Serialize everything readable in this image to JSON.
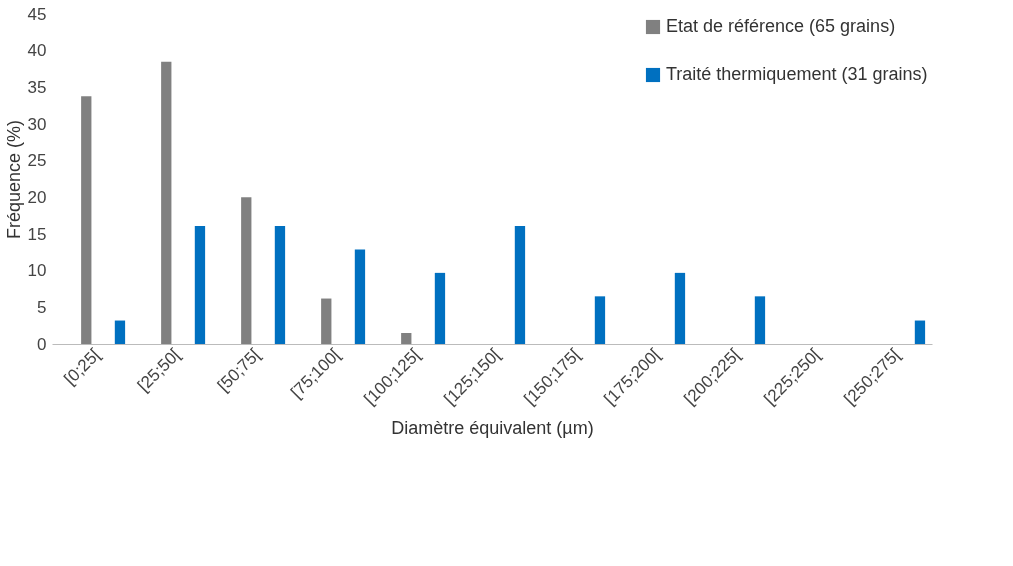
{
  "chart_data": {
    "type": "bar",
    "xlabel": "Diamètre équivalent (µm)",
    "ylabel": "Fréquence (%)",
    "categories": [
      "[0;25[",
      "[25;50[",
      "[50;75[",
      "[75;100[",
      "[100;125[",
      "[125;150[",
      "[150;175[",
      "[175;200[",
      "[200;225[",
      "[225;250[",
      "[250;275["
    ],
    "series": [
      {
        "name": "Etat de référence (65 grains)",
        "color": "#808080",
        "values": [
          33.8,
          38.5,
          20,
          6.2,
          1.5,
          0,
          0,
          0,
          0,
          0,
          0
        ]
      },
      {
        "name": "Traité thermiquement (31 grains)",
        "color": "#0070c0",
        "values": [
          3.2,
          16.1,
          16.1,
          12.9,
          9.7,
          16.1,
          6.5,
          9.7,
          6.5,
          0,
          3.2
        ]
      }
    ],
    "ylim": [
      0,
      45
    ],
    "yticks": [
      0,
      5,
      10,
      15,
      20,
      25,
      30,
      35,
      40,
      45
    ],
    "grid": false,
    "legend": "top right"
  }
}
